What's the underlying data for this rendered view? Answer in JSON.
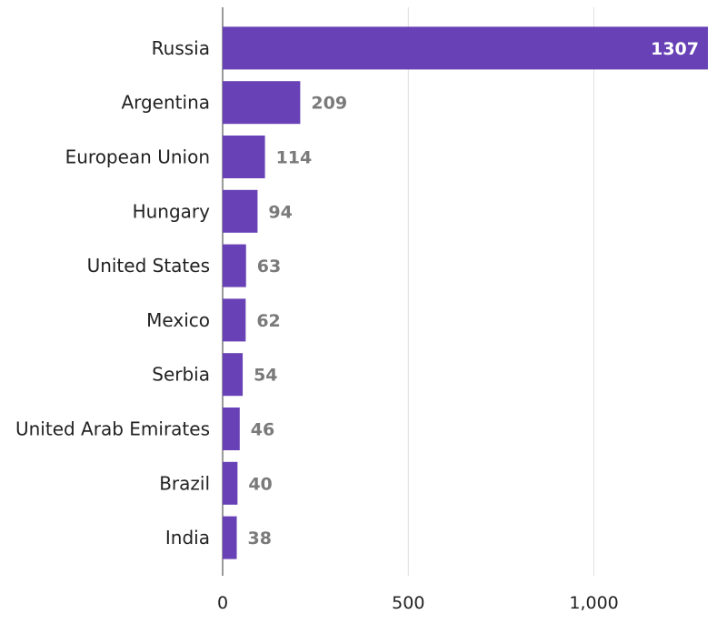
{
  "chart_data": {
    "type": "bar",
    "orientation": "horizontal",
    "categories": [
      "Russia",
      "Argentina",
      "European Union",
      "Hungary",
      "United States",
      "Mexico",
      "Serbia",
      "United Arab Emirates",
      "Brazil",
      "India"
    ],
    "values": [
      1307,
      209,
      114,
      94,
      63,
      62,
      54,
      46,
      40,
      38
    ],
    "value_labels": [
      "1307",
      "209",
      "114",
      "94",
      "63",
      "62",
      "54",
      "46",
      "40",
      "38"
    ],
    "xlim": [
      0,
      1307
    ],
    "x_ticks": [
      0,
      500,
      1000
    ],
    "x_tick_labels": [
      "0",
      "500",
      "1,000"
    ],
    "grid": "vertical",
    "bar_color": "#6741b5",
    "value_label_color": "#7a7a7a",
    "value_label_inside_color": "#ffffff"
  }
}
